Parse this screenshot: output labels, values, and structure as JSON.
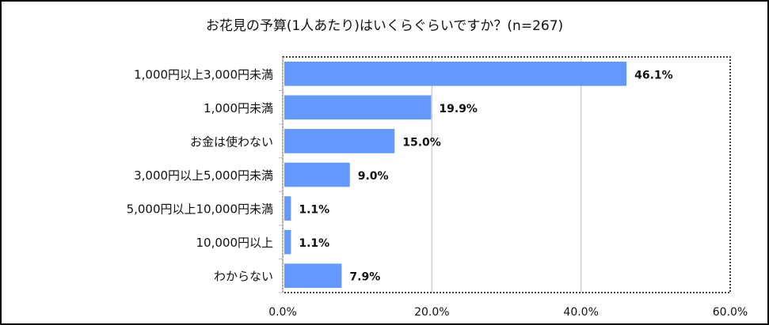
{
  "chart_data": {
    "type": "bar",
    "orientation": "horizontal",
    "title": "お花見の予算(1人あたり)はいくらぐらいですか？(n=267)",
    "categories": [
      "1,000円以上3,000円未満",
      "1,000円未満",
      "お金は使わない",
      "3,000円以上5,000円未満",
      "5,000円以上10,000円未満",
      "10,000円以上",
      "わからない"
    ],
    "values": [
      46.1,
      19.9,
      15.0,
      9.0,
      1.1,
      1.1,
      7.9
    ],
    "data_labels": [
      "46.1%",
      "19.9%",
      "15.0%",
      "9.0%",
      "1.1%",
      "1.1%",
      "7.9%"
    ],
    "xlim": [
      0,
      60
    ],
    "xticks": [
      "0.0%",
      "20.0%",
      "40.0%",
      "60.0%"
    ],
    "grid": true,
    "bar_color": "#6699ff",
    "legend": "none"
  }
}
